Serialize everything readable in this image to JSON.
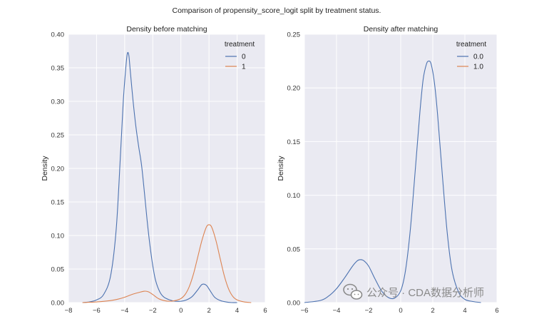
{
  "figure": {
    "title": "Comparison of propensity_score_logit split by treatment status."
  },
  "colors": {
    "background": "#eaeaf2",
    "grid": "#ffffff",
    "series0": "#4c72b0",
    "series1": "#dd8452"
  },
  "watermark": {
    "text": "公众号 · CDA数据分析师",
    "icon": "wechat-icon"
  },
  "chart_data": [
    {
      "type": "line",
      "title": "Density before matching",
      "xlabel": "",
      "ylabel": "Density",
      "xlim": [
        -8,
        6
      ],
      "ylim": [
        0,
        0.4
      ],
      "xticks": [
        "−8",
        "−6",
        "−4",
        "−2",
        "0",
        "2",
        "4",
        "6"
      ],
      "xtick_values": [
        -8,
        -6,
        -4,
        -2,
        0,
        2,
        4,
        6
      ],
      "yticks": [
        "0.00",
        "0.05",
        "0.10",
        "0.15",
        "0.20",
        "0.25",
        "0.30",
        "0.35",
        "0.40"
      ],
      "ytick_values": [
        0,
        0.05,
        0.1,
        0.15,
        0.2,
        0.25,
        0.3,
        0.35,
        0.4
      ],
      "grid": true,
      "legend": {
        "title": "treatment",
        "placement": "top-right"
      },
      "series": [
        {
          "name": "0",
          "x": [
            -7.0,
            -6.5,
            -6.0,
            -5.5,
            -5.0,
            -4.6,
            -4.3,
            -4.1,
            -3.9,
            -3.8,
            -3.7,
            -3.6,
            -3.4,
            -3.2,
            -3.0,
            -2.8,
            -2.6,
            -2.4,
            -2.2,
            -2.0,
            -1.8,
            -1.5,
            -1.2,
            -0.8,
            -0.4,
            0.0,
            0.4,
            0.8,
            1.2,
            1.5,
            1.8,
            2.1,
            2.4,
            2.8,
            3.2,
            3.6,
            4.0
          ],
          "y": [
            0.0,
            0.001,
            0.004,
            0.012,
            0.04,
            0.11,
            0.22,
            0.3,
            0.355,
            0.372,
            0.368,
            0.345,
            0.3,
            0.262,
            0.232,
            0.205,
            0.165,
            0.122,
            0.085,
            0.055,
            0.033,
            0.016,
            0.008,
            0.004,
            0.002,
            0.002,
            0.004,
            0.009,
            0.019,
            0.027,
            0.026,
            0.017,
            0.008,
            0.003,
            0.001,
            0.0,
            0.0
          ]
        },
        {
          "name": "1",
          "x": [
            -7.0,
            -6.0,
            -5.0,
            -4.5,
            -4.0,
            -3.5,
            -3.0,
            -2.6,
            -2.3,
            -2.0,
            -1.6,
            -1.2,
            -0.8,
            -0.4,
            0.0,
            0.3,
            0.6,
            0.9,
            1.2,
            1.5,
            1.8,
            2.0,
            2.2,
            2.5,
            2.8,
            3.1,
            3.4,
            3.7,
            4.0,
            4.5,
            5.0
          ],
          "y": [
            0.0,
            0.001,
            0.003,
            0.005,
            0.008,
            0.012,
            0.015,
            0.017,
            0.016,
            0.012,
            0.006,
            0.003,
            0.002,
            0.003,
            0.006,
            0.012,
            0.024,
            0.043,
            0.068,
            0.093,
            0.112,
            0.116,
            0.112,
            0.092,
            0.065,
            0.039,
            0.02,
            0.009,
            0.004,
            0.001,
            0.0
          ]
        }
      ]
    },
    {
      "type": "line",
      "title": "Density after matching",
      "xlabel": "",
      "ylabel": "Density",
      "xlim": [
        -6,
        6
      ],
      "ylim": [
        0,
        0.25
      ],
      "xticks": [
        "−6",
        "−4",
        "−2",
        "0",
        "2",
        "4",
        "6"
      ],
      "xtick_values": [
        -6,
        -4,
        -2,
        0,
        2,
        4,
        6
      ],
      "yticks": [
        "0.00",
        "0.05",
        "0.10",
        "0.15",
        "0.20",
        "0.25"
      ],
      "ytick_values": [
        0,
        0.05,
        0.1,
        0.15,
        0.2,
        0.25
      ],
      "grid": true,
      "legend": {
        "title": "treatment",
        "placement": "top-right"
      },
      "series": [
        {
          "name": "0.0",
          "x": [
            -6.0,
            -5.0,
            -4.5,
            -4.0,
            -3.5,
            -3.0,
            -2.7,
            -2.5,
            -2.3,
            -2.0,
            -1.6,
            -1.2,
            -0.8,
            -0.4,
            0.0,
            0.3,
            0.6,
            0.9,
            1.2,
            1.4,
            1.6,
            1.75,
            1.9,
            2.1,
            2.3,
            2.6,
            2.9,
            3.2,
            3.6,
            4.0,
            4.5,
            5.0
          ],
          "y": [
            0.0,
            0.002,
            0.006,
            0.013,
            0.023,
            0.034,
            0.039,
            0.04,
            0.039,
            0.034,
            0.022,
            0.011,
            0.005,
            0.004,
            0.011,
            0.03,
            0.068,
            0.122,
            0.178,
            0.208,
            0.222,
            0.225,
            0.222,
            0.205,
            0.175,
            0.118,
            0.065,
            0.03,
            0.01,
            0.003,
            0.001,
            0.0
          ]
        },
        {
          "name": "1.0",
          "x": [],
          "y": []
        }
      ]
    }
  ]
}
